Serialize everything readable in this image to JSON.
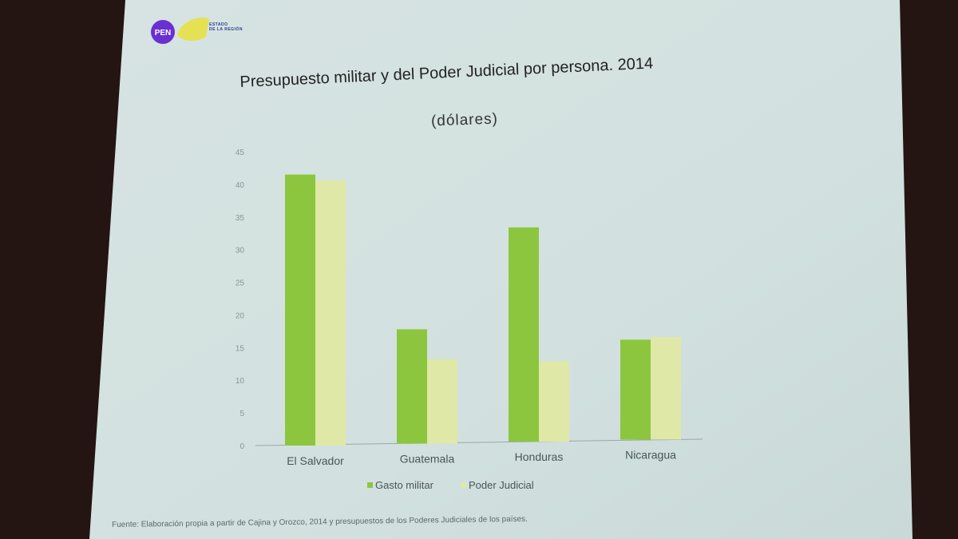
{
  "logo": {
    "badge": "PEN",
    "text_line1": "ESTADO",
    "text_line2": "DE LA REGIÓN"
  },
  "colors": {
    "slide_bg": "#d3e2e1",
    "gasto_militar": "#8cc63f",
    "poder_judicial": "#dfe8a6",
    "logo_purple": "#6a2fd0",
    "logo_yellow": "#e8e03a"
  },
  "source": "Fuente: Elaboración propia a partir de Cajina y Orozco, 2014 y presupuestos de los Poderes Judiciales de los países.",
  "chart_data": {
    "type": "bar",
    "title": "Presupuesto militar y del Poder Judicial por persona. 2014",
    "subtitle": "(dólares)",
    "categories": [
      "El Salvador",
      "Guatemala",
      "Honduras",
      "Nicaragua"
    ],
    "series": [
      {
        "name": "Gasto militar",
        "values": [
          41.5,
          17.5,
          32.8,
          15.3
        ]
      },
      {
        "name": "Poder Judicial",
        "values": [
          40.6,
          12.9,
          12.3,
          15.7
        ]
      }
    ],
    "ylim": [
      0,
      45
    ],
    "yticks": [
      "0",
      "5",
      "10",
      "15",
      "20",
      "25",
      "30",
      "35",
      "40",
      "45"
    ],
    "grid": false,
    "legend_position": "bottom"
  }
}
